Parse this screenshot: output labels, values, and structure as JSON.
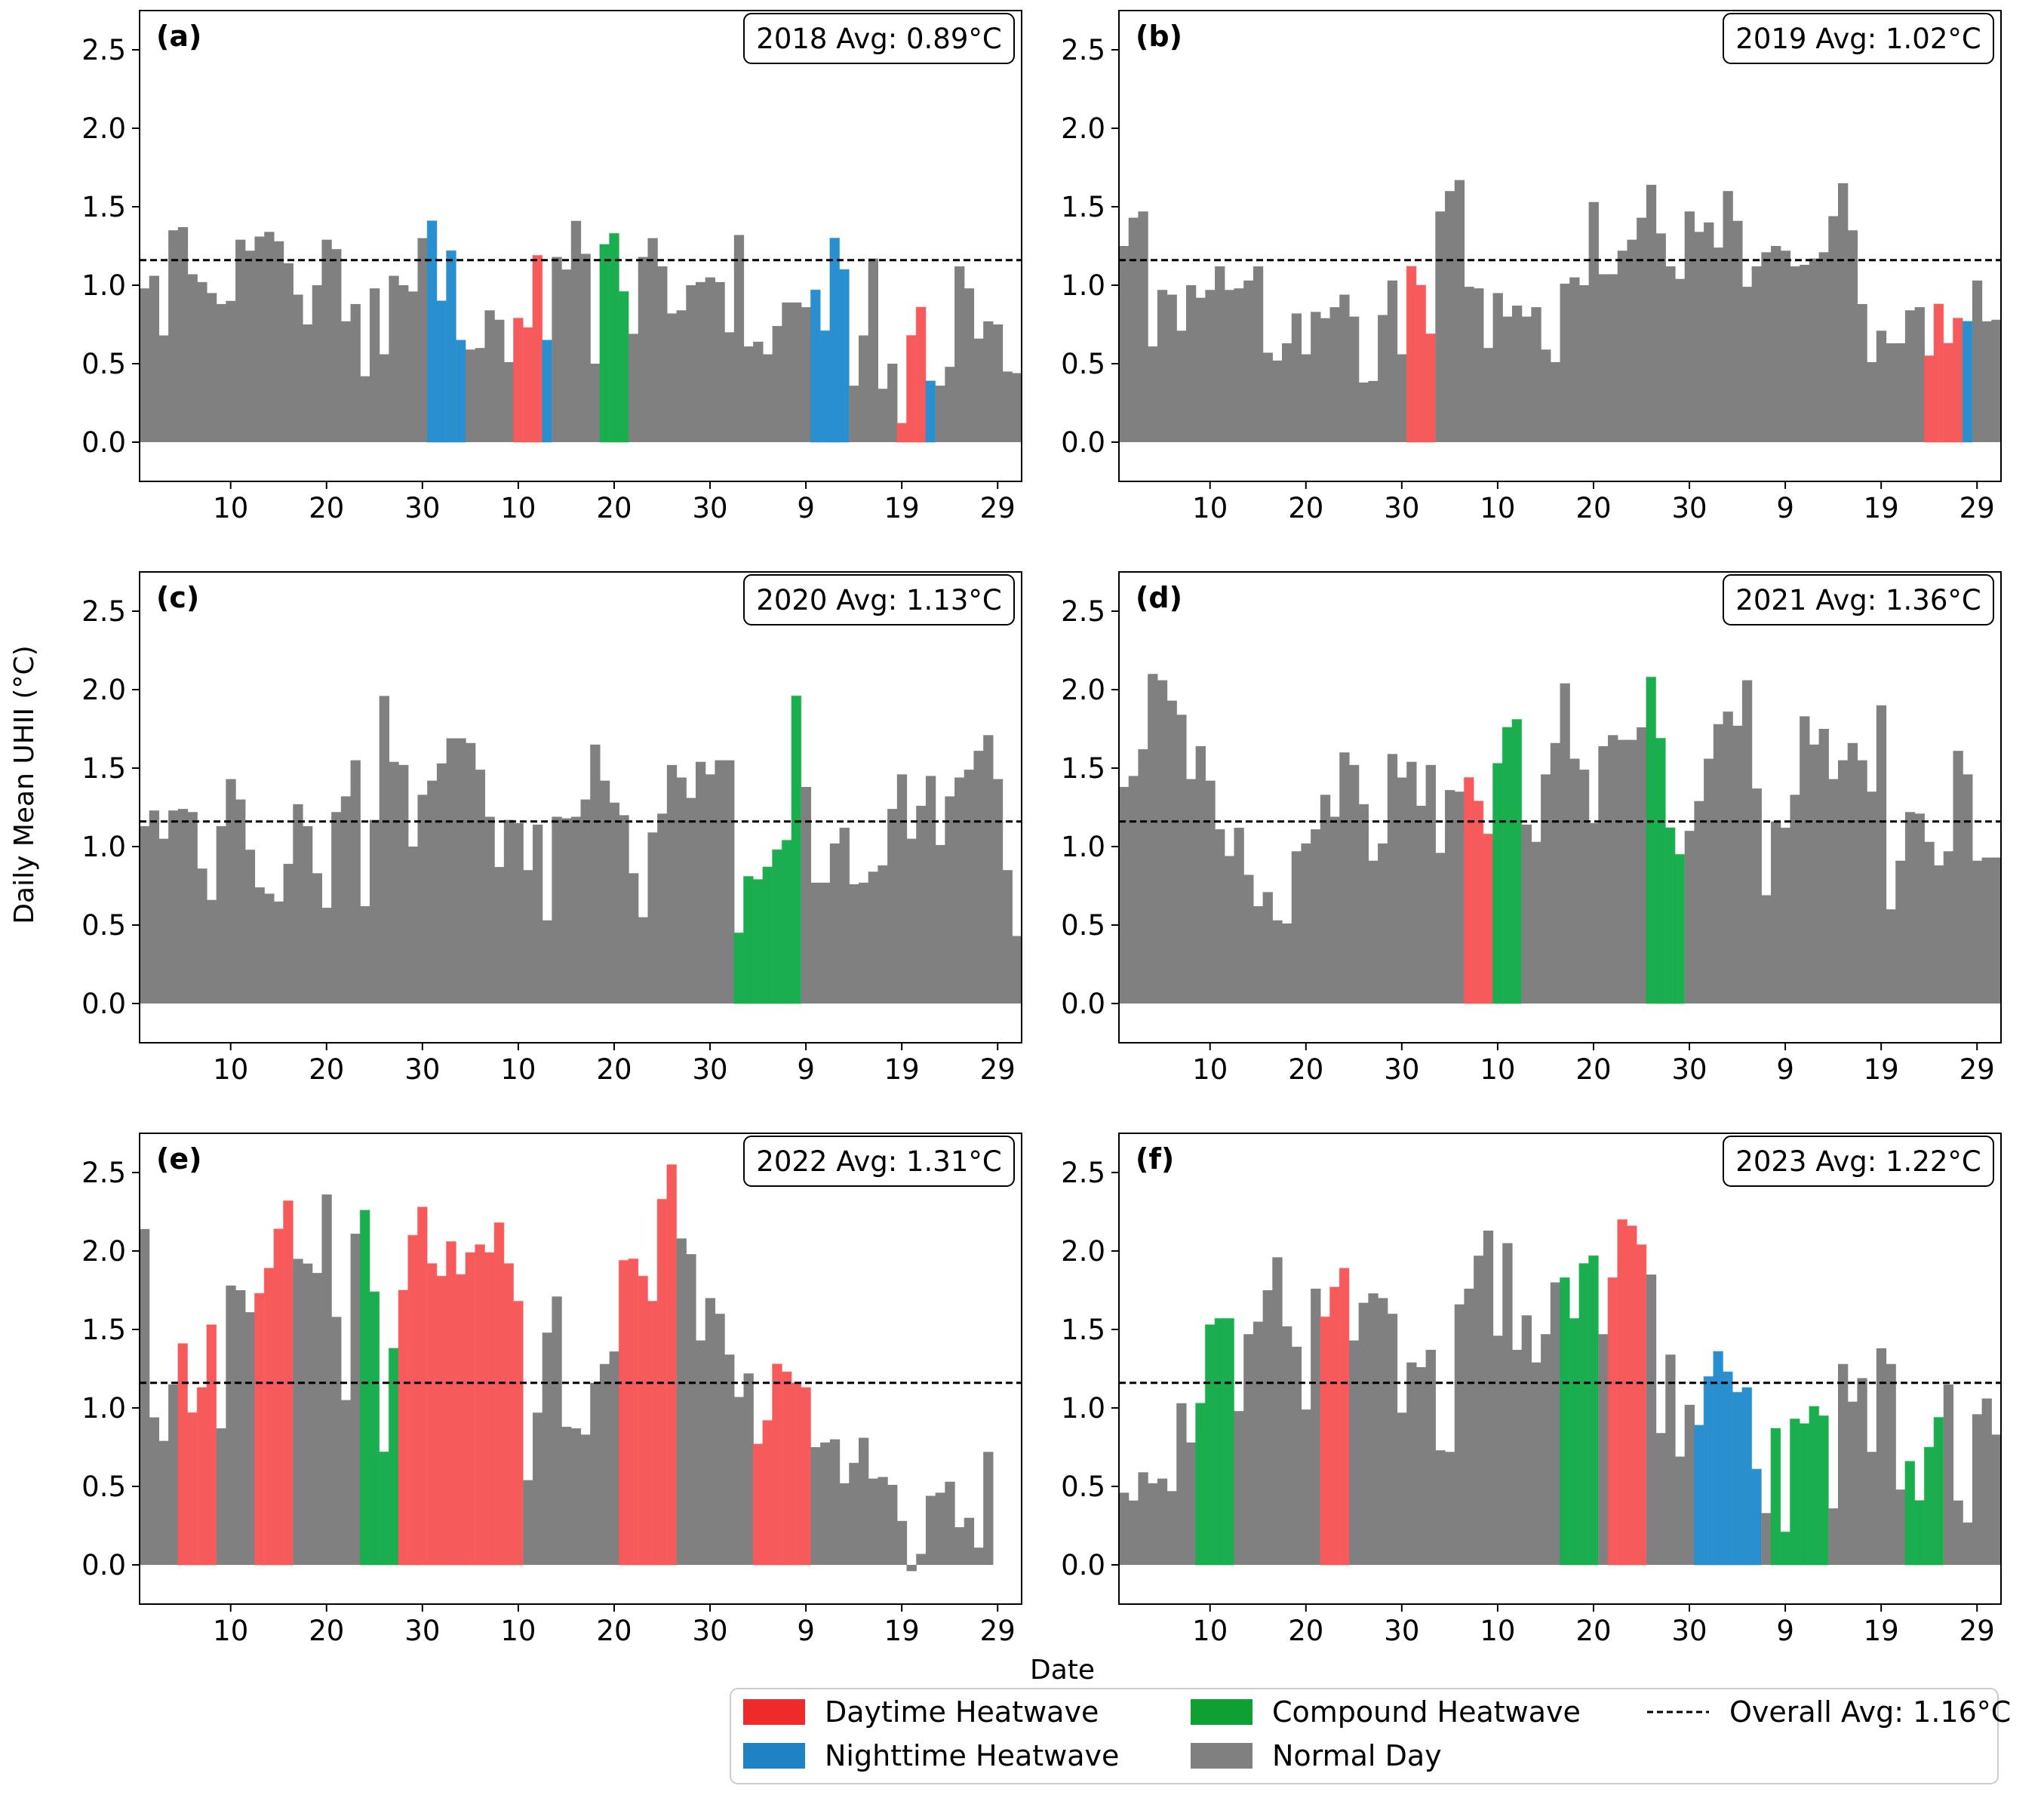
{
  "figure": {
    "ylabel": "Daily Mean UHII (°C)",
    "xlabel": "Date",
    "overall_avg": 1.16,
    "yticks": [
      "0.0",
      "0.5",
      "1.0",
      "1.5",
      "2.0",
      "2.5"
    ],
    "ytick_values": [
      0,
      0.5,
      1.0,
      1.5,
      2.0,
      2.5
    ],
    "xticks": [
      "10",
      "20",
      "30",
      "10",
      "20",
      "30",
      "9",
      "19",
      "29"
    ],
    "xtick_days": [
      10,
      20,
      30,
      40,
      50,
      60,
      70,
      80,
      90
    ],
    "ylim": [
      -0.25,
      2.75
    ],
    "xlim": [
      0.5,
      92.5
    ]
  },
  "colors": {
    "D": "#f65a5a",
    "N": "#2a8fcf",
    "C": "#1aae4f",
    "G": "#808080",
    "line": "#000000",
    "legend_D": "#ef2a2a",
    "legend_N": "#1f82c3",
    "legend_C": "#0fa034",
    "legend_G": "#808080"
  },
  "legend": {
    "daytime": "Daytime Heatwave",
    "nighttime": "Nighttime Heatwave",
    "compound": "Compound Heatwave",
    "normal": "Normal Day",
    "overall": "Overall Avg: 1.16°C"
  },
  "chart_data": [
    {
      "type": "bar",
      "panel": "(a)",
      "avg_label": "2018 Avg: 0.89°C",
      "year": 2018,
      "avg": 0.89,
      "values": [
        0.98,
        1.06,
        0.68,
        1.35,
        1.37,
        1.07,
        1.02,
        0.95,
        0.88,
        0.9,
        1.29,
        1.22,
        1.31,
        1.34,
        1.28,
        1.14,
        0.94,
        0.75,
        1.0,
        1.29,
        1.23,
        0.77,
        0.88,
        0.42,
        0.98,
        0.56,
        1.06,
        1.0,
        0.96,
        1.3,
        1.41,
        0.9,
        1.22,
        0.65,
        0.59,
        0.6,
        0.84,
        0.78,
        0.51,
        0.79,
        0.73,
        1.19,
        0.65,
        1.18,
        1.1,
        1.41,
        1.2,
        0.5,
        1.26,
        1.33,
        0.96,
        0.69,
        1.18,
        1.3,
        1.12,
        0.82,
        0.84,
        1.0,
        1.02,
        1.05,
        1.02,
        0.7,
        1.32,
        0.61,
        0.64,
        0.56,
        0.74,
        0.89,
        0.89,
        0.86,
        0.97,
        0.71,
        1.3,
        1.1,
        0.36,
        0.68,
        1.17,
        0.34,
        0.5,
        0.12,
        0.68,
        0.86,
        0.39,
        0.36,
        0.48,
        1.12,
        0.98,
        0.66,
        0.77,
        0.75,
        0.45,
        0.44
      ],
      "types": [
        "G",
        "G",
        "G",
        "G",
        "G",
        "G",
        "G",
        "G",
        "G",
        "G",
        "G",
        "G",
        "G",
        "G",
        "G",
        "G",
        "G",
        "G",
        "G",
        "G",
        "G",
        "G",
        "G",
        "G",
        "G",
        "G",
        "G",
        "G",
        "G",
        "G",
        "N",
        "N",
        "N",
        "N",
        "G",
        "G",
        "G",
        "G",
        "G",
        "D",
        "D",
        "D",
        "N",
        "G",
        "G",
        "G",
        "G",
        "G",
        "C",
        "C",
        "C",
        "G",
        "G",
        "G",
        "G",
        "G",
        "G",
        "G",
        "G",
        "G",
        "G",
        "G",
        "G",
        "G",
        "G",
        "G",
        "G",
        "G",
        "G",
        "G",
        "N",
        "N",
        "N",
        "N",
        "G",
        "G",
        "G",
        "G",
        "G",
        "D",
        "D",
        "D",
        "N",
        "G",
        "G",
        "G",
        "G",
        "G",
        "G",
        "G",
        "G",
        "G"
      ]
    },
    {
      "type": "bar",
      "panel": "(b)",
      "avg_label": "2019 Avg: 1.02°C",
      "year": 2019,
      "avg": 1.02,
      "values": [
        1.25,
        1.43,
        1.47,
        0.61,
        0.97,
        0.94,
        0.71,
        1.0,
        0.92,
        0.97,
        1.12,
        0.97,
        0.98,
        1.03,
        1.12,
        0.57,
        0.52,
        0.63,
        0.82,
        0.56,
        0.83,
        0.79,
        0.86,
        0.94,
        0.8,
        0.38,
        0.39,
        0.81,
        1.03,
        0.56,
        1.12,
        1.0,
        0.69,
        1.47,
        1.6,
        1.67,
        0.99,
        0.98,
        0.6,
        0.95,
        0.8,
        0.87,
        0.8,
        0.86,
        0.59,
        0.51,
        1.01,
        1.05,
        1.0,
        1.53,
        1.07,
        1.07,
        1.22,
        1.29,
        1.43,
        1.64,
        1.33,
        1.12,
        1.04,
        1.47,
        1.34,
        1.4,
        1.24,
        1.6,
        1.41,
        0.99,
        1.12,
        1.21,
        1.25,
        1.22,
        1.12,
        1.13,
        1.17,
        1.21,
        1.44,
        1.65,
        1.35,
        0.88,
        0.51,
        0.71,
        0.63,
        0.63,
        0.84,
        0.86,
        0.55,
        0.88,
        0.63,
        0.79,
        0.77,
        1.03,
        0.77,
        0.78
      ],
      "types": [
        "G",
        "G",
        "G",
        "G",
        "G",
        "G",
        "G",
        "G",
        "G",
        "G",
        "G",
        "G",
        "G",
        "G",
        "G",
        "G",
        "G",
        "G",
        "G",
        "G",
        "G",
        "G",
        "G",
        "G",
        "G",
        "G",
        "G",
        "G",
        "G",
        "G",
        "D",
        "D",
        "D",
        "G",
        "G",
        "G",
        "G",
        "G",
        "G",
        "G",
        "G",
        "G",
        "G",
        "G",
        "G",
        "G",
        "G",
        "G",
        "G",
        "G",
        "G",
        "G",
        "G",
        "G",
        "G",
        "G",
        "G",
        "G",
        "G",
        "G",
        "G",
        "G",
        "G",
        "G",
        "G",
        "G",
        "G",
        "G",
        "G",
        "G",
        "G",
        "G",
        "G",
        "G",
        "G",
        "G",
        "G",
        "G",
        "G",
        "G",
        "G",
        "G",
        "G",
        "G",
        "D",
        "D",
        "D",
        "D",
        "N",
        "G",
        "G",
        "G"
      ]
    },
    {
      "type": "bar",
      "panel": "(c)",
      "avg_label": "2020 Avg: 1.13°C",
      "year": 2020,
      "avg": 1.13,
      "values": [
        1.13,
        1.23,
        1.05,
        1.23,
        1.24,
        1.22,
        0.86,
        0.66,
        1.13,
        1.43,
        1.3,
        0.98,
        0.74,
        0.7,
        0.65,
        0.89,
        1.27,
        1.13,
        0.83,
        0.61,
        1.22,
        1.32,
        1.55,
        0.62,
        1.17,
        1.96,
        1.54,
        1.52,
        1.0,
        1.33,
        1.42,
        1.53,
        1.69,
        1.69,
        1.66,
        1.49,
        1.19,
        0.87,
        1.17,
        1.15,
        0.85,
        1.14,
        0.53,
        1.19,
        1.18,
        1.19,
        1.3,
        1.65,
        1.42,
        1.28,
        1.2,
        0.83,
        0.55,
        1.09,
        1.21,
        1.52,
        1.44,
        1.31,
        1.54,
        1.46,
        1.55,
        1.55,
        0.45,
        0.81,
        0.79,
        0.87,
        0.98,
        1.04,
        1.96,
        1.38,
        0.77,
        0.77,
        1.02,
        1.12,
        0.76,
        0.77,
        0.84,
        0.88,
        1.24,
        1.46,
        1.05,
        1.26,
        1.45,
        1.01,
        1.32,
        1.44,
        1.49,
        1.61,
        1.71,
        1.43,
        0.85,
        0.43
      ],
      "types": [
        "G",
        "G",
        "G",
        "G",
        "G",
        "G",
        "G",
        "G",
        "G",
        "G",
        "G",
        "G",
        "G",
        "G",
        "G",
        "G",
        "G",
        "G",
        "G",
        "G",
        "G",
        "G",
        "G",
        "G",
        "G",
        "G",
        "G",
        "G",
        "G",
        "G",
        "G",
        "G",
        "G",
        "G",
        "G",
        "G",
        "G",
        "G",
        "G",
        "G",
        "G",
        "G",
        "G",
        "G",
        "G",
        "G",
        "G",
        "G",
        "G",
        "G",
        "G",
        "G",
        "G",
        "G",
        "G",
        "G",
        "G",
        "G",
        "G",
        "G",
        "G",
        "G",
        "C",
        "C",
        "C",
        "C",
        "C",
        "C",
        "C",
        "G",
        "G",
        "G",
        "G",
        "G",
        "G",
        "G",
        "G",
        "G",
        "G",
        "G",
        "G",
        "G",
        "G",
        "G",
        "G",
        "G",
        "G",
        "G",
        "G",
        "G",
        "G",
        "G"
      ]
    },
    {
      "type": "bar",
      "panel": "(d)",
      "avg_label": "2021 Avg: 1.36°C",
      "year": 2021,
      "avg": 1.36,
      "values": [
        1.38,
        1.45,
        1.62,
        2.1,
        2.06,
        1.93,
        1.84,
        1.43,
        1.64,
        1.42,
        1.11,
        0.94,
        1.12,
        0.82,
        0.62,
        0.71,
        0.53,
        0.51,
        0.97,
        1.02,
        1.11,
        1.33,
        1.19,
        1.6,
        1.52,
        1.27,
        0.91,
        1.02,
        1.59,
        1.44,
        1.54,
        1.26,
        1.52,
        0.96,
        1.36,
        1.35,
        1.44,
        1.29,
        1.08,
        1.53,
        1.76,
        1.81,
        1.14,
        1.03,
        1.46,
        1.66,
        2.04,
        1.56,
        1.49,
        1.15,
        1.64,
        1.71,
        1.68,
        1.68,
        1.76,
        2.08,
        1.69,
        1.12,
        0.95,
        1.1,
        1.29,
        1.56,
        1.78,
        1.86,
        1.77,
        2.06,
        1.37,
        0.69,
        1.16,
        1.12,
        1.33,
        1.83,
        1.65,
        1.75,
        1.43,
        1.55,
        1.66,
        1.55,
        1.35,
        1.9,
        0.6,
        0.91,
        1.22,
        1.21,
        1.03,
        0.88,
        0.97,
        1.61,
        1.46,
        0.91,
        0.93,
        0.93
      ],
      "types": [
        "G",
        "G",
        "G",
        "G",
        "G",
        "G",
        "G",
        "G",
        "G",
        "G",
        "G",
        "G",
        "G",
        "G",
        "G",
        "G",
        "G",
        "G",
        "G",
        "G",
        "G",
        "G",
        "G",
        "G",
        "G",
        "G",
        "G",
        "G",
        "G",
        "G",
        "G",
        "G",
        "G",
        "G",
        "G",
        "G",
        "D",
        "D",
        "D",
        "C",
        "C",
        "C",
        "G",
        "G",
        "G",
        "G",
        "G",
        "G",
        "G",
        "G",
        "G",
        "G",
        "G",
        "G",
        "G",
        "C",
        "C",
        "C",
        "C",
        "G",
        "G",
        "G",
        "G",
        "G",
        "G",
        "G",
        "G",
        "G",
        "G",
        "G",
        "G",
        "G",
        "G",
        "G",
        "G",
        "G",
        "G",
        "G",
        "G",
        "G",
        "G",
        "G",
        "G",
        "G",
        "G",
        "G",
        "G",
        "G",
        "G",
        "G",
        "G",
        "G"
      ]
    },
    {
      "type": "bar",
      "panel": "(e)",
      "avg_label": "2022 Avg: 1.31°C",
      "year": 2022,
      "avg": 1.31,
      "values": [
        2.14,
        0.94,
        0.79,
        1.15,
        1.41,
        0.97,
        1.13,
        1.53,
        0.87,
        1.78,
        1.75,
        1.61,
        1.73,
        1.89,
        2.14,
        2.32,
        1.95,
        1.92,
        1.86,
        2.36,
        1.58,
        1.05,
        2.11,
        2.26,
        1.74,
        0.72,
        1.38,
        1.75,
        2.1,
        2.28,
        1.92,
        1.84,
        2.06,
        1.85,
        1.99,
        2.04,
        1.99,
        2.18,
        1.92,
        1.68,
        0.54,
        0.97,
        1.48,
        1.71,
        0.88,
        0.87,
        0.83,
        1.16,
        1.28,
        1.36,
        1.94,
        1.95,
        1.84,
        1.68,
        2.33,
        2.55,
        2.08,
        1.98,
        1.43,
        1.7,
        1.6,
        1.34,
        1.07,
        1.22,
        0.77,
        0.92,
        1.28,
        1.23,
        1.16,
        1.13,
        0.75,
        0.78,
        0.8,
        0.52,
        0.65,
        0.81,
        0.55,
        0.56,
        0.51,
        0.28,
        -0.04,
        0.07,
        0.44,
        0.46,
        0.53,
        0.24,
        0.3,
        0.11,
        0.72,
        0.0,
        0.0,
        0.0
      ],
      "types": [
        "G",
        "G",
        "G",
        "G",
        "D",
        "D",
        "D",
        "D",
        "G",
        "G",
        "G",
        "G",
        "D",
        "D",
        "D",
        "D",
        "G",
        "G",
        "G",
        "G",
        "G",
        "G",
        "G",
        "C",
        "C",
        "C",
        "C",
        "D",
        "D",
        "D",
        "D",
        "D",
        "D",
        "D",
        "D",
        "D",
        "D",
        "D",
        "D",
        "D",
        "G",
        "G",
        "G",
        "G",
        "G",
        "G",
        "G",
        "G",
        "G",
        "G",
        "D",
        "D",
        "D",
        "D",
        "D",
        "D",
        "G",
        "G",
        "G",
        "G",
        "G",
        "G",
        "G",
        "G",
        "D",
        "D",
        "D",
        "D",
        "D",
        "D",
        "G",
        "G",
        "G",
        "G",
        "G",
        "G",
        "G",
        "G",
        "G",
        "G",
        "G",
        "G",
        "G",
        "G",
        "G",
        "G",
        "G",
        "G",
        "G",
        "G",
        "G",
        "G"
      ]
    },
    {
      "type": "bar",
      "panel": "(f)",
      "avg_label": "2023 Avg: 1.22°C",
      "year": 2023,
      "avg": 1.22,
      "values": [
        0.46,
        0.41,
        0.59,
        0.52,
        0.55,
        0.47,
        1.03,
        0.78,
        1.03,
        1.53,
        1.57,
        1.57,
        0.98,
        1.47,
        1.55,
        1.75,
        1.96,
        1.52,
        1.39,
        0.99,
        1.76,
        1.58,
        1.77,
        1.89,
        1.43,
        1.67,
        1.73,
        1.7,
        1.6,
        0.97,
        1.29,
        1.26,
        1.37,
        0.73,
        0.72,
        1.66,
        1.76,
        1.97,
        2.13,
        1.46,
        2.05,
        1.37,
        1.59,
        1.29,
        1.47,
        1.8,
        1.83,
        1.57,
        1.92,
        1.97,
        1.47,
        1.83,
        2.2,
        2.16,
        2.04,
        1.85,
        0.84,
        1.34,
        0.69,
        1.02,
        0.89,
        1.2,
        1.36,
        1.23,
        1.1,
        1.13,
        0.61,
        0.33,
        0.87,
        0.21,
        0.93,
        0.9,
        1.01,
        0.95,
        0.36,
        1.28,
        1.04,
        1.19,
        0.72,
        1.38,
        1.28,
        0.48,
        0.66,
        0.41,
        0.75,
        0.94,
        1.15,
        0.41,
        0.27,
        0.96,
        1.06,
        0.83
      ],
      "types": [
        "G",
        "G",
        "G",
        "G",
        "G",
        "G",
        "G",
        "G",
        "C",
        "C",
        "C",
        "C",
        "G",
        "G",
        "G",
        "G",
        "G",
        "G",
        "G",
        "G",
        "G",
        "D",
        "D",
        "D",
        "G",
        "G",
        "G",
        "G",
        "G",
        "G",
        "G",
        "G",
        "G",
        "G",
        "G",
        "G",
        "G",
        "G",
        "G",
        "G",
        "G",
        "G",
        "G",
        "G",
        "G",
        "G",
        "C",
        "C",
        "C",
        "C",
        "G",
        "D",
        "D",
        "D",
        "D",
        "G",
        "G",
        "G",
        "G",
        "G",
        "N",
        "N",
        "N",
        "N",
        "N",
        "N",
        "N",
        "G",
        "C",
        "C",
        "C",
        "C",
        "C",
        "C",
        "G",
        "G",
        "G",
        "G",
        "G",
        "G",
        "G",
        "G",
        "C",
        "C",
        "C",
        "C",
        "G",
        "G",
        "G",
        "G",
        "G",
        "G"
      ]
    }
  ]
}
